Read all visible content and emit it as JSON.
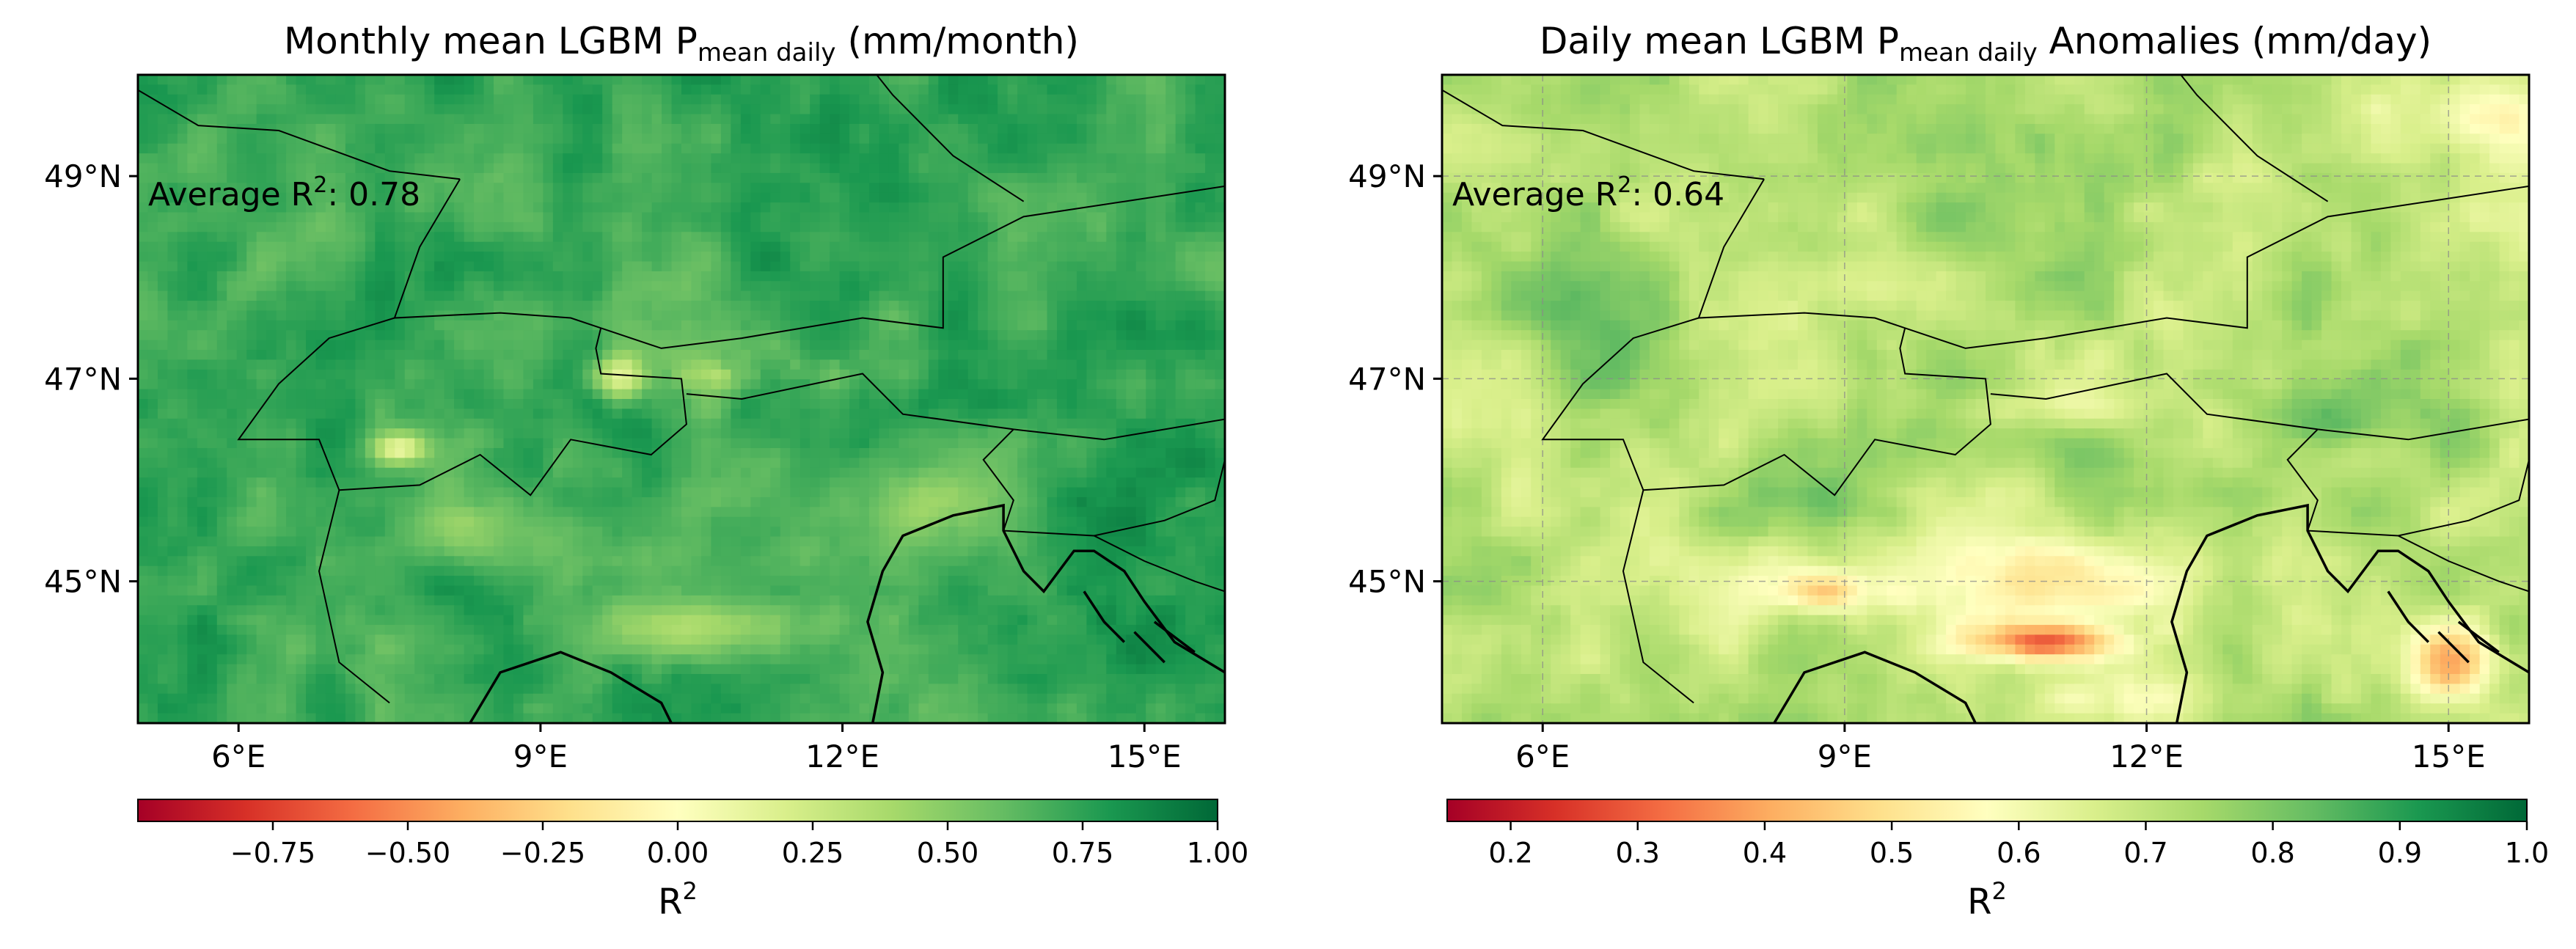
{
  "colors": {
    "cmap": [
      "#a50026",
      "#d73027",
      "#f46d43",
      "#fdae61",
      "#fee08b",
      "#ffffbf",
      "#d9ef8b",
      "#a6d96a",
      "#66bd63",
      "#1a9850",
      "#006837"
    ]
  },
  "chart_data": [
    {
      "type": "heatmap",
      "title": "Monthly mean LGBM P",
      "title_sub": "mean daily",
      "title_tail": " (mm/month)",
      "annotation_label": "Average R",
      "annotation_sup": "2",
      "annotation_value": ": 0.78",
      "average_r2": 0.78,
      "xlim": [
        5,
        15.8
      ],
      "ylim": [
        43.6,
        50
      ],
      "x_ticks": [
        6,
        9,
        12,
        15
      ],
      "x_tick_labels": [
        "6°E",
        "9°E",
        "12°E",
        "15°E"
      ],
      "y_ticks": [
        45,
        47,
        49
      ],
      "y_tick_labels": [
        "45°N",
        "47°N",
        "49°N"
      ],
      "grid": false,
      "colorbar": {
        "range": [
          -1.0,
          1.0
        ],
        "ticks": [
          -0.75,
          -0.5,
          -0.25,
          0.0,
          0.25,
          0.5,
          0.75,
          1.0
        ],
        "tick_labels": [
          "−0.75",
          "−0.50",
          "−0.25",
          "0.00",
          "0.25",
          "0.50",
          "0.75",
          "1.00"
        ],
        "label": "R",
        "label_sup": "2",
        "orientation": "horizontal"
      }
    },
    {
      "type": "heatmap",
      "title": "Daily mean LGBM P",
      "title_sub": "mean daily",
      "title_tail": " Anomalies (mm/day)",
      "annotation_label": "Average R",
      "annotation_sup": "2",
      "annotation_value": ": 0.64",
      "average_r2": 0.64,
      "xlim": [
        5,
        15.8
      ],
      "ylim": [
        43.6,
        50
      ],
      "x_ticks": [
        6,
        9,
        12,
        15
      ],
      "x_tick_labels": [
        "6°E",
        "9°E",
        "12°E",
        "15°E"
      ],
      "y_ticks": [
        45,
        47,
        49
      ],
      "y_tick_labels": [
        "45°N",
        "47°N",
        "49°N"
      ],
      "grid": true,
      "colorbar": {
        "range": [
          0.15,
          1.0
        ],
        "ticks": [
          0.2,
          0.3,
          0.4,
          0.5,
          0.6,
          0.7,
          0.8,
          0.9,
          1.0
        ],
        "tick_labels": [
          "0.2",
          "0.3",
          "0.4",
          "0.5",
          "0.6",
          "0.7",
          "0.8",
          "0.9",
          "1.0"
        ],
        "label": "R",
        "label_sup": "2",
        "orientation": "horizontal"
      }
    }
  ]
}
